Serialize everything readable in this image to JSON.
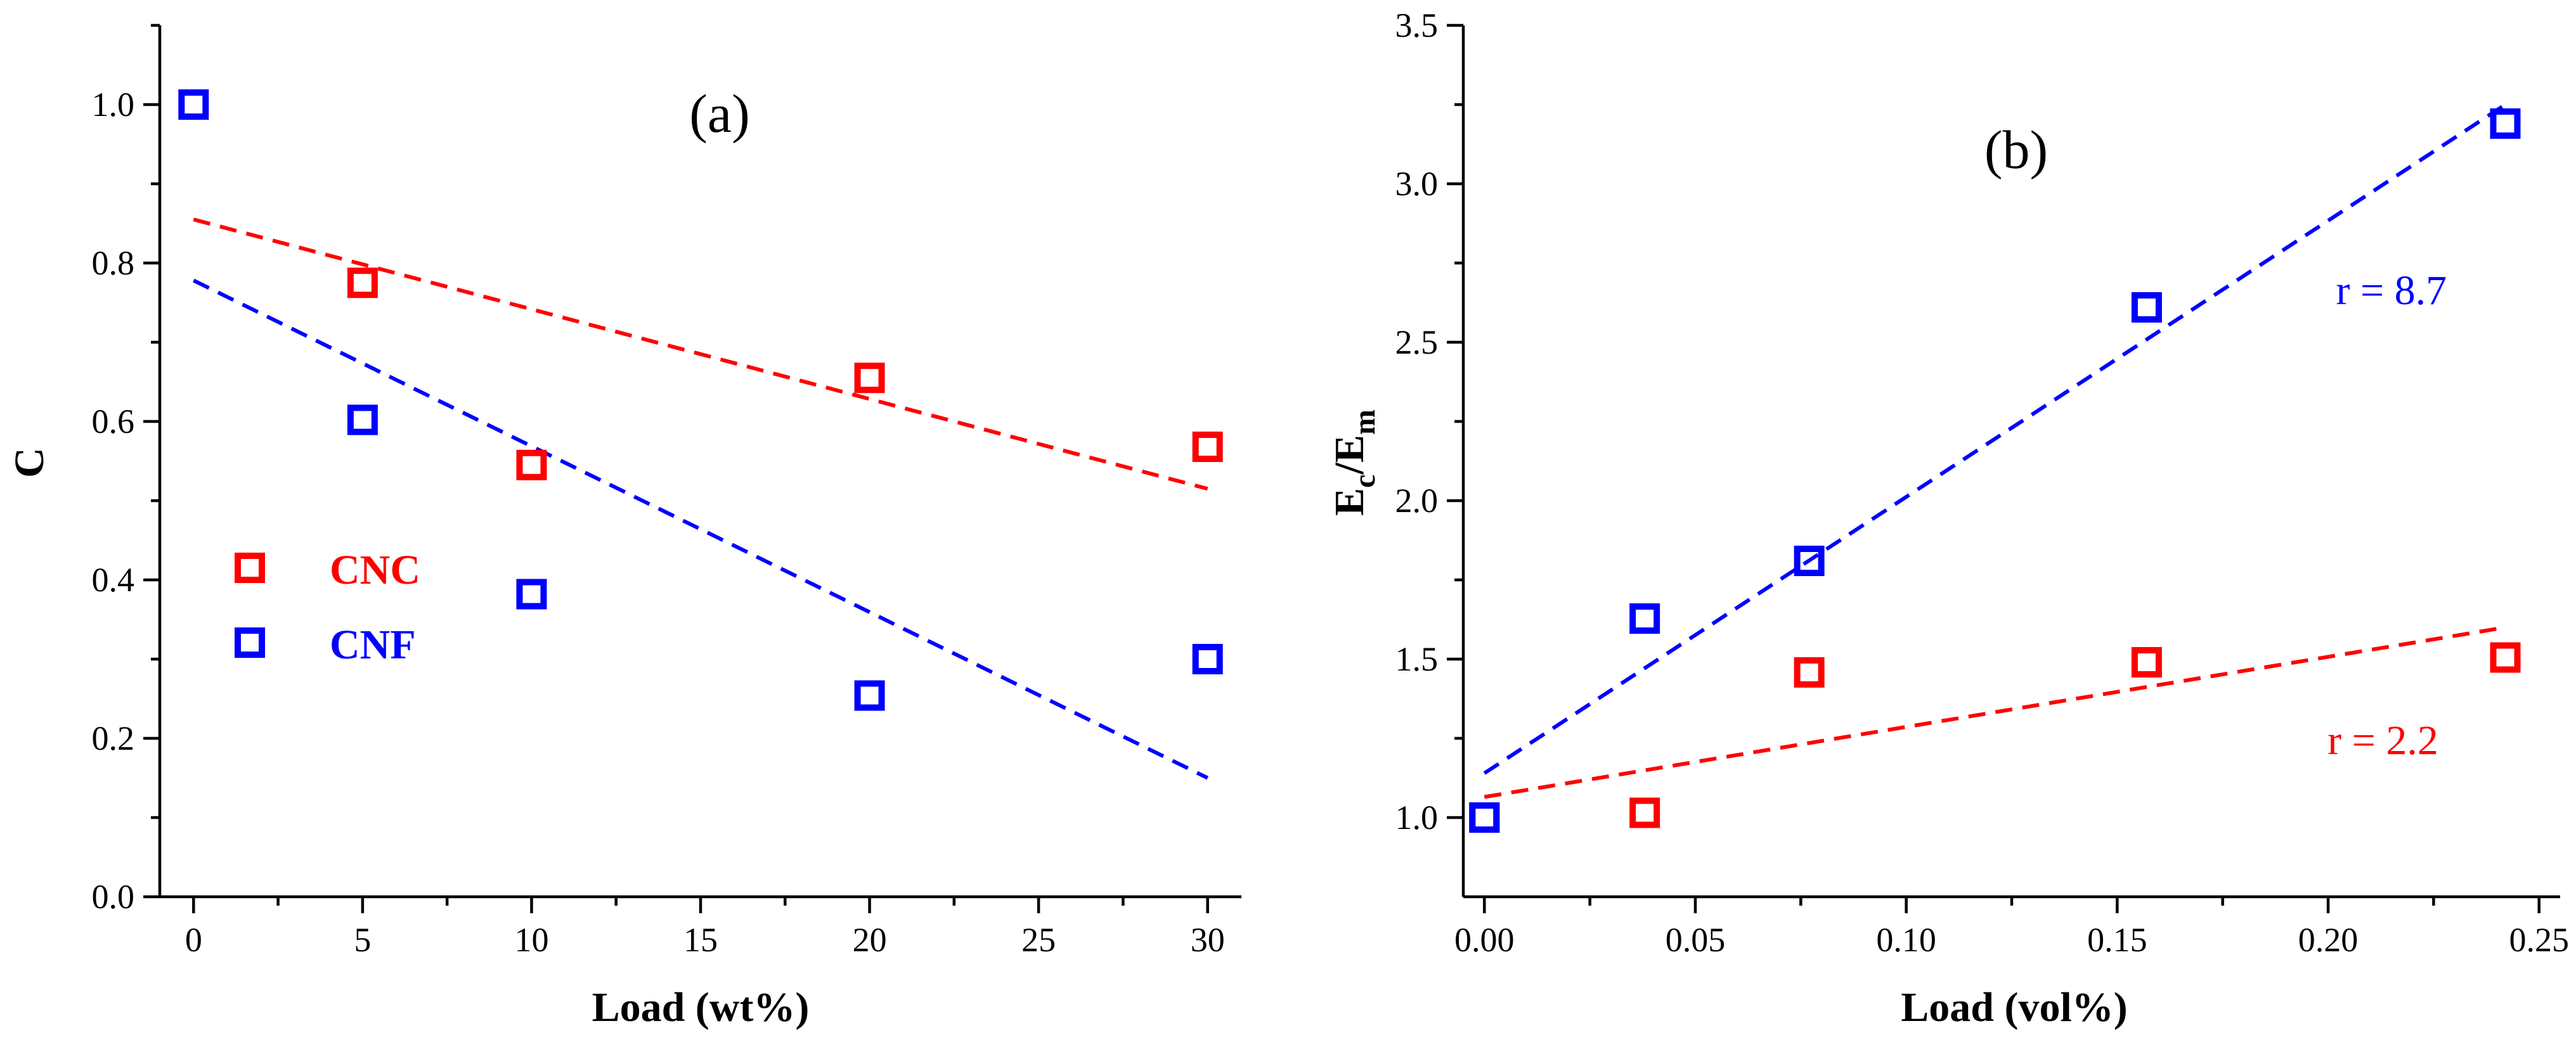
{
  "colors": {
    "cnc": "#ff0000",
    "cnf": "#0000ff",
    "axis": "#000000"
  },
  "chart_data": [
    {
      "id": "a",
      "type": "scatter",
      "panel_label": "(a)",
      "title": "",
      "xlabel": "Load (wt%)",
      "ylabel": "C",
      "xlim": [
        -1,
        31
      ],
      "ylim": [
        0,
        1.1
      ],
      "xticks": [
        0,
        5,
        10,
        15,
        20,
        25,
        30
      ],
      "xtick_labels": [
        "0",
        "5",
        "10",
        "15",
        "20",
        "25",
        "30"
      ],
      "yticks": [
        0,
        0.2,
        0.4,
        0.6,
        0.8,
        1.0
      ],
      "ytick_labels": [
        "0.0",
        "0.2",
        "0.4",
        "0.6",
        "0.8",
        "1.0"
      ],
      "legend": [
        {
          "label": "CNC",
          "color": "#ff0000"
        },
        {
          "label": "CNF",
          "color": "#0000ff"
        }
      ],
      "legend_position": "center-left",
      "series": [
        {
          "name": "CNC",
          "color": "#ff0000",
          "x": [
            5,
            10,
            20,
            30
          ],
          "y": [
            0.775,
            0.545,
            0.655,
            0.568
          ],
          "fit": {
            "x": [
              0,
              30
            ],
            "y": [
              0.855,
              0.515
            ]
          }
        },
        {
          "name": "CNF",
          "color": "#0000ff",
          "x": [
            0,
            5,
            10,
            20,
            30
          ],
          "y": [
            1.0,
            0.602,
            0.382,
            0.254,
            0.3
          ],
          "fit": {
            "x": [
              0,
              30
            ],
            "y": [
              0.778,
              0.15
            ]
          }
        }
      ],
      "annotations": []
    },
    {
      "id": "b",
      "type": "scatter",
      "panel_label": "(b)",
      "title": "",
      "xlabel": "Load (vol%)",
      "ylabel_main": "E",
      "ylabel_sub1": "c",
      "ylabel_mid": "/E",
      "ylabel_sub2": "m",
      "xlim": [
        -0.005,
        0.255
      ],
      "ylim": [
        0.75,
        3.5
      ],
      "xticks": [
        0,
        0.05,
        0.1,
        0.15,
        0.2,
        0.25
      ],
      "xtick_labels": [
        "0.00",
        "0.05",
        "0.10",
        "0.15",
        "0.20",
        "0.25"
      ],
      "yticks": [
        1.0,
        1.5,
        2.0,
        2.5,
        3.0,
        3.5
      ],
      "ytick_labels": [
        "1.0",
        "1.5",
        "2.0",
        "2.5",
        "3.0",
        "3.5"
      ],
      "series": [
        {
          "name": "CNC",
          "color": "#ff0000",
          "x": [
            0,
            0.038,
            0.077,
            0.157,
            0.242
          ],
          "y": [
            1.0,
            1.015,
            1.458,
            1.49,
            1.505
          ],
          "fit": {
            "x": [
              0,
              0.242
            ],
            "y": [
              1.065,
              1.6
            ]
          }
        },
        {
          "name": "CNF",
          "color": "#0000ff",
          "x": [
            0,
            0.038,
            0.077,
            0.157,
            0.242
          ],
          "y": [
            1.0,
            1.628,
            1.81,
            2.61,
            3.19
          ],
          "fit": {
            "x": [
              0,
              0.242
            ],
            "y": [
              1.14,
              3.25
            ]
          }
        }
      ],
      "annotations": [
        {
          "text": "r = 8.7",
          "color": "#0000ff",
          "x": 0.215,
          "y": 2.62
        },
        {
          "text": "r = 2.2",
          "color": "#ff0000",
          "x": 0.213,
          "y": 1.2
        }
      ]
    }
  ]
}
